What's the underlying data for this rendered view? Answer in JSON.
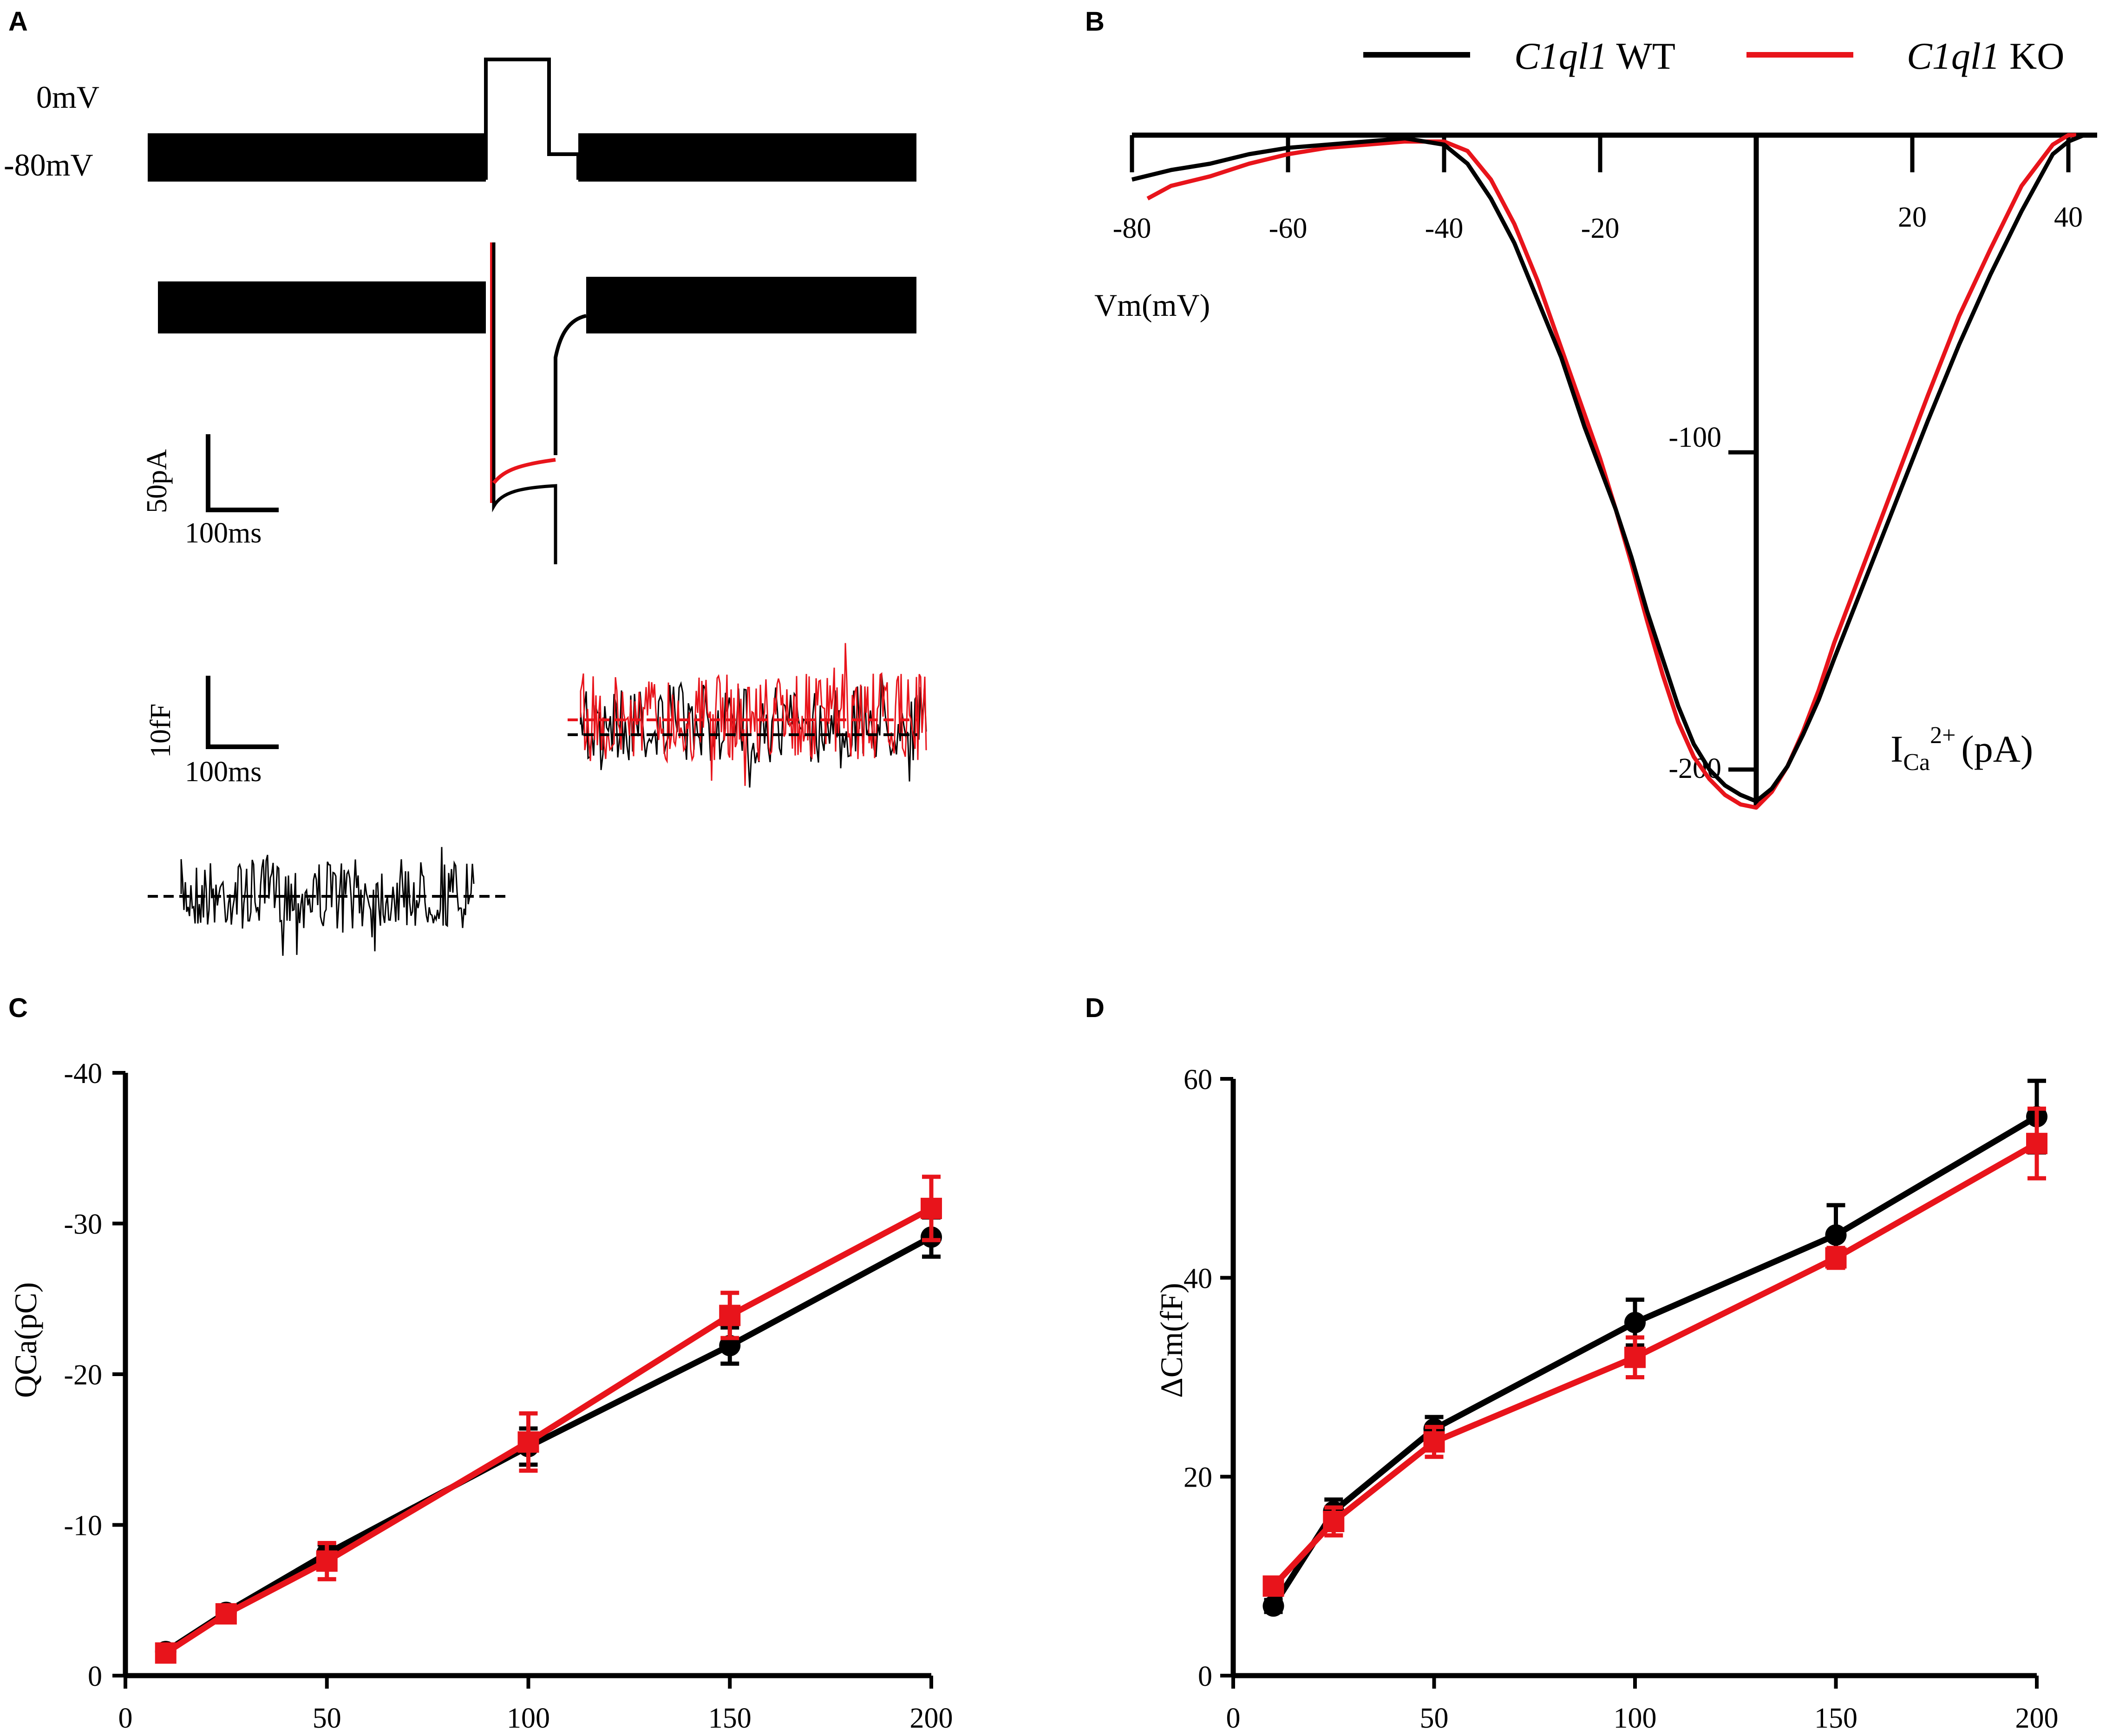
{
  "colors": {
    "wt": "#000000",
    "ko": "#e8141b",
    "axis": "#000000"
  },
  "chart_data": [
    {
      "panel": "A",
      "type": "line",
      "title": "",
      "annotations": [
        "0mV",
        "-80mV",
        "50pA",
        "100ms",
        "10fF",
        "100ms"
      ],
      "voltage_protocol": {
        "labels": [
          "0mV",
          "-80mV"
        ],
        "step_from_mV": -80,
        "step_to_mV": 0
      },
      "current_scale_bar": {
        "amplitude": "50pA",
        "time": "100ms"
      },
      "capacitance_scale_bar": {
        "amplitude": "10fF",
        "time": "100ms"
      },
      "legend": [
        "C1ql1 WT",
        "C1ql1 KO"
      ]
    },
    {
      "panel": "B",
      "type": "line",
      "title": "",
      "xlabel": "Vm(mV)",
      "ylabel_main": "I",
      "ylabel_sub": "Ca",
      "ylabel_sup": "2+",
      "ylabel_unit": "(pA)",
      "xticks": [
        -80,
        -60,
        -40,
        -20,
        20,
        40
      ],
      "yticks": [
        -100,
        -200
      ],
      "xlim": [
        -80,
        42
      ],
      "ylim": [
        -215,
        0
      ],
      "legend": [
        {
          "italic": "C1ql1",
          "plain": " WT"
        },
        {
          "italic": "C1ql1",
          "plain": " KO"
        }
      ],
      "series": [
        {
          "name": "C1ql1 WT",
          "x": [
            -80,
            -75,
            -70,
            -65,
            -60,
            -55,
            -50,
            -45,
            -40,
            -37,
            -34,
            -31,
            -28,
            -25,
            -22,
            -20,
            -18,
            -16,
            -14,
            -12,
            -10,
            -8,
            -6,
            -4,
            -2,
            0,
            2,
            4,
            6,
            8,
            10,
            14,
            18,
            22,
            26,
            30,
            34,
            38,
            40,
            42
          ],
          "y": [
            -14,
            -11,
            -9,
            -6,
            -4,
            -3,
            -2,
            -1,
            -3,
            -9,
            -20,
            -34,
            -52,
            -70,
            -92,
            -105,
            -118,
            -133,
            -150,
            -165,
            -180,
            -192,
            -200,
            -205,
            -208,
            -210,
            -206,
            -199,
            -189,
            -178,
            -165,
            -140,
            -115,
            -90,
            -66,
            -44,
            -24,
            -6,
            -2,
            0
          ]
        },
        {
          "name": "C1ql1 KO",
          "x": [
            -78,
            -75,
            -70,
            -65,
            -60,
            -55,
            -50,
            -45,
            -40,
            -37,
            -34,
            -31,
            -28,
            -25,
            -22,
            -20,
            -18,
            -16,
            -14,
            -12,
            -10,
            -8,
            -6,
            -4,
            -2,
            0,
            2,
            4,
            6,
            8,
            10,
            14,
            18,
            22,
            26,
            30,
            34,
            38,
            40,
            41
          ],
          "y": [
            -20,
            -16,
            -13,
            -9,
            -6,
            -4,
            -3,
            -2,
            -2,
            -5,
            -14,
            -28,
            -46,
            -67,
            -88,
            -102,
            -118,
            -135,
            -153,
            -170,
            -185,
            -196,
            -203,
            -208,
            -211,
            -212,
            -207,
            -199,
            -188,
            -175,
            -160,
            -134,
            -108,
            -82,
            -57,
            -36,
            -16,
            -3,
            0,
            0
          ]
        }
      ]
    },
    {
      "panel": "C",
      "type": "line",
      "title": "",
      "xlabel": "",
      "ylabel": "QCa(pC)",
      "yticks": [
        0,
        -10,
        -20,
        -30,
        -40
      ],
      "xticks": [
        0,
        50,
        100,
        150,
        200
      ],
      "xlim": [
        0,
        200
      ],
      "ylim": [
        0,
        -40
      ],
      "series": [
        {
          "name": "C1ql1 WT",
          "x": [
            10,
            25,
            50,
            100,
            150,
            200
          ],
          "y": [
            -1.6,
            -4.2,
            -8.1,
            -15.2,
            -21.9,
            -29.1
          ],
          "err": [
            0.3,
            0.4,
            0.6,
            1.2,
            1.2,
            1.3
          ]
        },
        {
          "name": "C1ql1 KO",
          "x": [
            10,
            25,
            50,
            100,
            150,
            200
          ],
          "y": [
            -1.5,
            -4.1,
            -7.6,
            -15.5,
            -23.9,
            -31.0
          ],
          "err": [
            0.4,
            0.5,
            1.2,
            1.9,
            1.5,
            2.1
          ]
        }
      ]
    },
    {
      "panel": "D",
      "type": "line",
      "title": "",
      "xlabel": "",
      "ylabel": "ΔCm(fF)",
      "yticks": [
        0,
        20,
        40,
        60
      ],
      "xticks": [
        0,
        50,
        100,
        150,
        200
      ],
      "xlim": [
        0,
        200
      ],
      "ylim": [
        0,
        60
      ],
      "series": [
        {
          "name": "C1ql1 WT",
          "x": [
            10,
            25,
            50,
            100,
            150,
            200
          ],
          "y": [
            7.0,
            16.5,
            24.8,
            35.5,
            44.3,
            56.2
          ],
          "err": [
            0.6,
            1.2,
            1.2,
            2.3,
            3.0,
            3.6
          ]
        },
        {
          "name": "C1ql1 KO",
          "x": [
            10,
            25,
            50,
            100,
            150,
            200
          ],
          "y": [
            9.0,
            15.5,
            23.5,
            32.0,
            42.0,
            53.5
          ],
          "err": [
            0.8,
            1.4,
            1.5,
            2.0,
            1.0,
            3.5
          ]
        }
      ]
    }
  ],
  "panels": {
    "a": "A",
    "b": "B",
    "c": "C",
    "d": "D"
  }
}
